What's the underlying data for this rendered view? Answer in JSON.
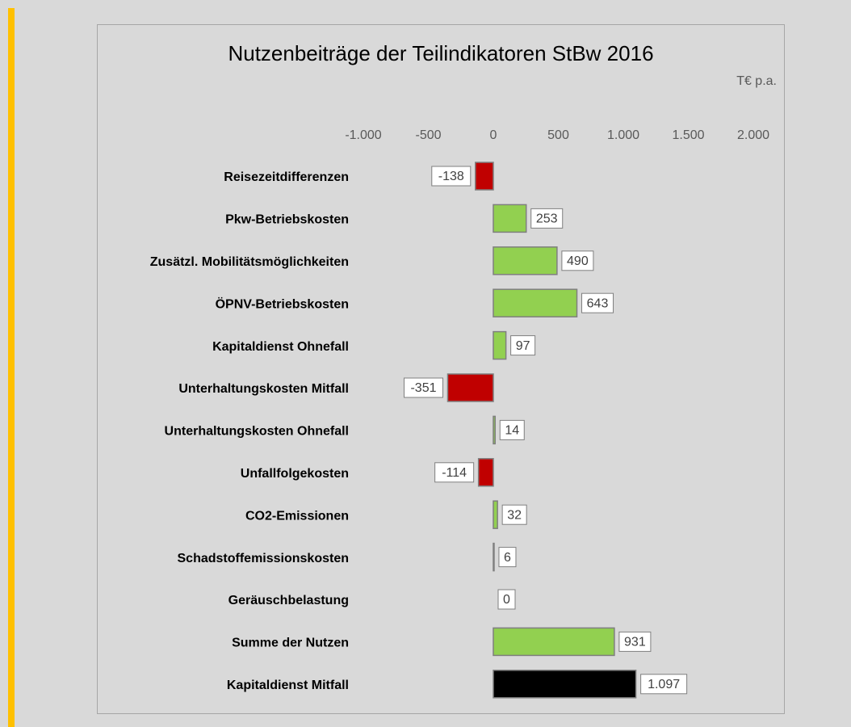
{
  "chart_data": {
    "type": "bar",
    "orientation": "horizontal",
    "title": "Nutzenbeiträge der Teilindikatoren StBw 2016",
    "unit": "T€ p.a.",
    "categories": [
      "Reisezeitdifferenzen",
      "Pkw-Betriebskosten",
      "Zusätzl. Mobilitätsmöglichkeiten",
      "ÖPNV-Betriebskosten",
      "Kapitaldienst Ohnefall",
      "Unterhaltungskosten Mitfall",
      "Unterhaltungskosten Ohnefall",
      "Unfallfolgekosten",
      "CO2-Emissionen",
      "Schadstoffemissionskosten",
      "Geräuschbelastung",
      "Summe der Nutzen",
      "Kapitaldienst Mitfall"
    ],
    "values": [
      -138,
      253,
      490,
      643,
      97,
      -351,
      14,
      -114,
      32,
      6,
      0,
      931,
      1097
    ],
    "value_labels": [
      "-138",
      "253",
      "490",
      "643",
      "97",
      "-351",
      "14",
      "-114",
      "32",
      "6",
      "0",
      "931",
      "1.097"
    ],
    "colors": [
      "#c00000",
      "#92d050",
      "#92d050",
      "#92d050",
      "#92d050",
      "#c00000",
      "#92d050",
      "#c00000",
      "#92d050",
      "#92d050",
      "#92d050",
      "#92d050",
      "#000000"
    ],
    "xlim": [
      -1000,
      2000
    ],
    "xticks": [
      {
        "value": -1000,
        "label": "-1.000"
      },
      -500,
      0,
      500,
      {
        "value": 1000,
        "label": "1.000"
      },
      {
        "value": 1500,
        "label": "1.500"
      },
      {
        "value": 2000,
        "label": "2.000"
      }
    ],
    "grid": false
  }
}
